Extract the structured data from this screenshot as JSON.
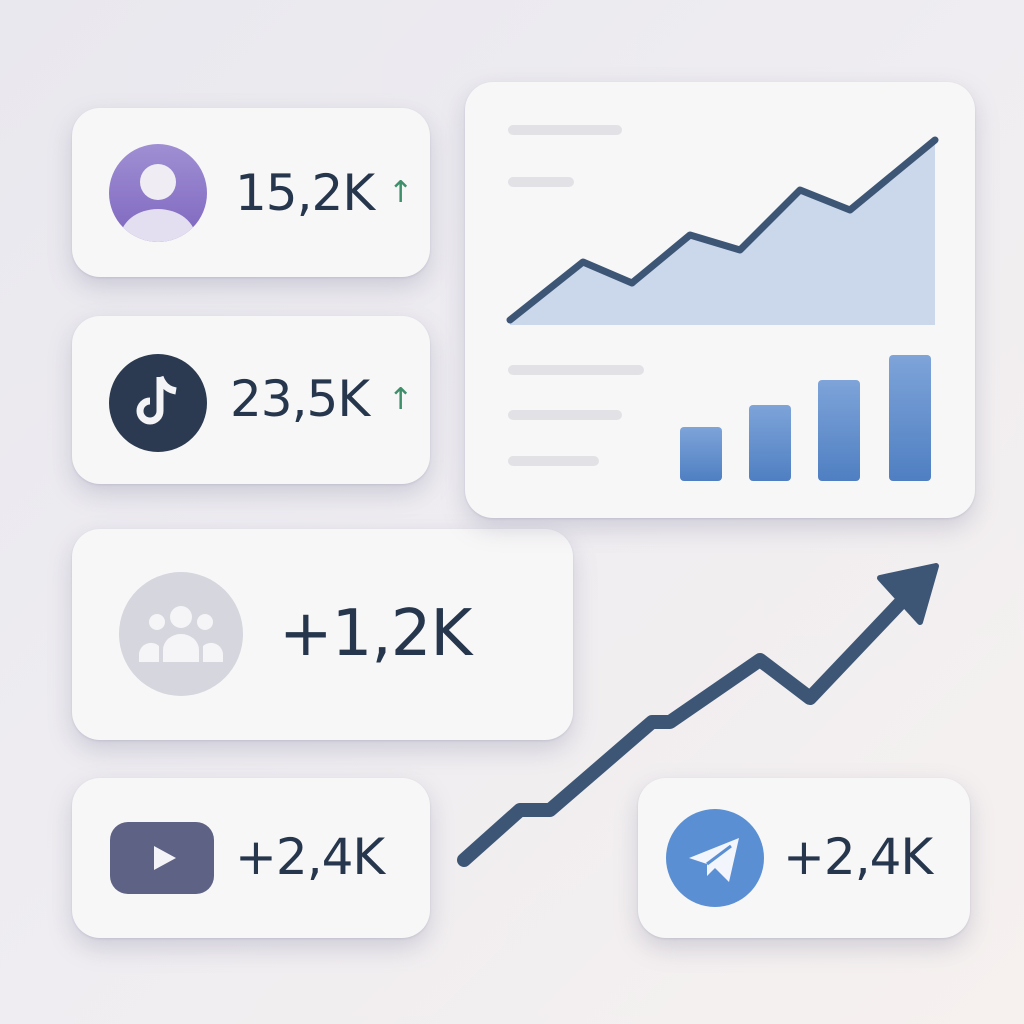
{
  "stats": [
    {
      "icon": "user-avatar-icon",
      "value": "15,2K",
      "trend": "↑",
      "icon_color": "#8e79c7"
    },
    {
      "icon": "tiktok-icon",
      "value": "23,5K",
      "trend": "↑",
      "icon_color": "#2b3a50"
    },
    {
      "icon": "group-icon",
      "value": "+1,2K",
      "icon_color": "#d5d6de"
    },
    {
      "icon": "youtube-icon",
      "value": "+2,4K",
      "icon_color": "#5e6285"
    },
    {
      "icon": "telegram-icon",
      "value": "+2,4K",
      "icon_color": "#5b8fd4"
    }
  ],
  "colors": {
    "text": "#26364d",
    "trend_up": "#3e8f6a",
    "chart_line": "#3d5676",
    "chart_fill": "#cbd8ec",
    "bar": "#5a89c9"
  }
}
